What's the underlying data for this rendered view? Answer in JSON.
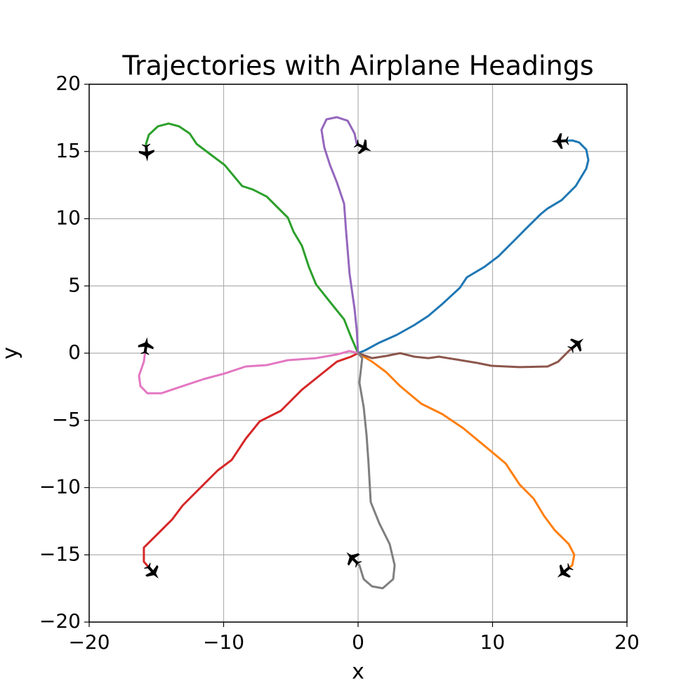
{
  "chart_data": {
    "type": "line",
    "title": "Trajectories with Airplane Headings",
    "xlabel": "x",
    "ylabel": "y",
    "xlim": [
      -20,
      20
    ],
    "ylim": [
      -20,
      20
    ],
    "xticks": [
      {
        "value": -20,
        "label": "−20"
      },
      {
        "value": -10,
        "label": "−10"
      },
      0,
      10,
      20
    ],
    "yticks": [
      {
        "value": -20,
        "label": "−20"
      },
      {
        "value": -15,
        "label": "−15"
      },
      {
        "value": -10,
        "label": "−10"
      },
      {
        "value": -5,
        "label": "−5"
      },
      0,
      5,
      10,
      15,
      20
    ],
    "grid": true,
    "marker_color": "#000000",
    "series": [
      {
        "color": "#1f77b4",
        "x": [
          0,
          0.52,
          1.57,
          2.87,
          4.18,
          5.22,
          6.27,
          7.57,
          8.09,
          9.4,
          10.44,
          11.75,
          12.53,
          13.58,
          14.1,
          15.14,
          16.19,
          16.97,
          17.13,
          16.97,
          16.45,
          15.93,
          14.99
        ],
        "y": [
          0,
          0.21,
          0.78,
          1.36,
          2.09,
          2.77,
          3.66,
          4.86,
          5.64,
          6.42,
          7.2,
          8.51,
          9.3,
          10.34,
          10.76,
          11.38,
          12.43,
          13.73,
          14.36,
          15.14,
          15.67,
          15.82,
          15.77
        ]
      },
      {
        "color": "#ff7f0e",
        "x": [
          0,
          1.04,
          2.09,
          3.13,
          4.7,
          6.27,
          7.83,
          9.4,
          10.97,
          12.01,
          13.05,
          13.84,
          14.62,
          15.67,
          16.08,
          15.93,
          15.3
        ],
        "y": [
          0,
          -0.63,
          -1.41,
          -2.45,
          -3.76,
          -4.54,
          -5.59,
          -6.89,
          -8.2,
          -9.77,
          -10.81,
          -12.11,
          -13.16,
          -14.2,
          -14.99,
          -15.77,
          -16.29
        ]
      },
      {
        "color": "#2ca02c",
        "x": [
          0,
          -0.52,
          -1.04,
          -2.09,
          -3.13,
          -3.66,
          -4.18,
          -4.8,
          -5.22,
          -6.01,
          -6.79,
          -7.83,
          -8.62,
          -9.92,
          -10.97,
          -12.01,
          -12.53,
          -13.32,
          -14.1,
          -14.88,
          -15.56,
          -15.77,
          -15.72
        ],
        "y": [
          0,
          1.2,
          2.51,
          3.81,
          5.12,
          6.42,
          7.99,
          9.03,
          10.08,
          10.86,
          11.64,
          12.17,
          12.43,
          13.99,
          14.78,
          15.56,
          16.34,
          16.87,
          17.08,
          16.87,
          16.24,
          15.56,
          14.88
        ]
      },
      {
        "color": "#d62728",
        "x": [
          0,
          -0.52,
          -1.57,
          -2.87,
          -4.18,
          -5.74,
          -7.31,
          -8.36,
          -9.4,
          -10.44,
          -11.49,
          -13.05,
          -13.84,
          -14.88,
          -15.93,
          -15.93,
          -15.25
        ],
        "y": [
          0,
          -0.26,
          -0.63,
          -1.67,
          -2.72,
          -4.28,
          -5.07,
          -6.37,
          -7.94,
          -8.72,
          -9.77,
          -11.33,
          -12.38,
          -13.42,
          -14.46,
          -15.51,
          -16.29
        ]
      },
      {
        "color": "#9467bd",
        "x": [
          0,
          -0.1,
          -0.26,
          -0.63,
          -0.89,
          -1.04,
          -1.57,
          -2.09,
          -2.51,
          -2.72,
          -2.35,
          -1.57,
          -0.78,
          -0.26,
          -0.1,
          0.42
        ],
        "y": [
          0,
          1.72,
          3.29,
          5.9,
          9.03,
          11.12,
          12.69,
          13.99,
          15.3,
          16.61,
          17.39,
          17.55,
          17.29,
          16.34,
          15.56,
          15.3
        ]
      },
      {
        "color": "#8c564b",
        "x": [
          0,
          1.04,
          2.09,
          3.13,
          4.18,
          5.22,
          6.01,
          7.31,
          8.88,
          9.92,
          12.01,
          14.1,
          14.88,
          15.67,
          16.29
        ],
        "y": [
          0,
          -0.37,
          -0.21,
          0,
          -0.26,
          -0.37,
          -0.26,
          -0.47,
          -0.73,
          -0.94,
          -1.04,
          -0.99,
          -0.63,
          0.16,
          0.68
        ]
      },
      {
        "color": "#e377c2",
        "x": [
          0,
          -0.63,
          -1.57,
          -3.13,
          -5.22,
          -6.79,
          -8.36,
          -9.92,
          -11.49,
          -13.05,
          -14.62,
          -15.67,
          -16.19,
          -16.29,
          -15.93,
          -15.77
        ],
        "y": [
          0,
          0.16,
          -0.1,
          -0.37,
          -0.52,
          -0.89,
          -0.99,
          -1.51,
          -1.93,
          -2.45,
          -2.98,
          -2.98,
          -2.45,
          -1.67,
          -0.63,
          0.57
        ]
      },
      {
        "color": "#7f7f7f",
        "x": [
          0,
          0.31,
          0.1,
          0.42,
          0.63,
          0.78,
          0.94,
          1.57,
          2.35,
          2.72,
          2.61,
          1.83,
          1.04,
          0.42,
          0.1,
          -0.42
        ],
        "y": [
          0,
          -0.37,
          -2.19,
          -4.02,
          -6.11,
          -8.2,
          -11.07,
          -12.64,
          -14.2,
          -15.77,
          -16.81,
          -17.49,
          -17.34,
          -16.81,
          -15.77,
          -15.25
        ]
      }
    ]
  }
}
